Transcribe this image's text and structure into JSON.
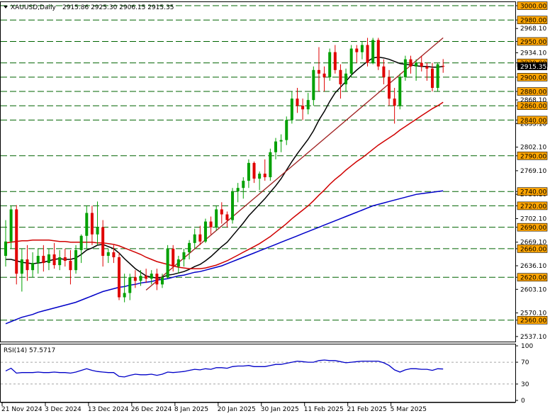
{
  "header": {
    "symbol": "XAUUSD,Daily",
    "ohlc": "2915.86 2925.30 2906.15 2915.35",
    "rsi_label": "RSI(14) 57.5717"
  },
  "colors": {
    "background": "#ffffff",
    "candle_up": "#00a000",
    "candle_down": "#e00000",
    "sma_fast": "#000000",
    "sma_mid": "#d00000",
    "sma_slow": "#0000c8",
    "trendline": "#a02020",
    "level_line": "#006400",
    "level_label_bg": "#ffa500",
    "rsi_line": "#0000c8"
  },
  "chart_data": [
    {
      "type": "candlestick",
      "title": "XAUUSD,Daily",
      "ylim": [
        2530,
        3005
      ],
      "y_ticks": [
        3000.0,
        2980.0,
        2968.1,
        2950.0,
        2934.1,
        2920.0,
        2900.0,
        2880.0,
        2868.1,
        2860.0,
        2840.0,
        2835.1,
        2802.1,
        2790.0,
        2769.1,
        2740.0,
        2736.1,
        2720.0,
        2702.1,
        2690.0,
        2669.1,
        2660.0,
        2636.1,
        2620.0,
        2603.1,
        2570.1,
        2560.0,
        2537.1
      ],
      "current_price_label": "2915.35",
      "horizontal_levels": [
        3000.0,
        2980.0,
        2950.0,
        2920.0,
        2900.0,
        2880.0,
        2860.0,
        2840.0,
        2790.0,
        2740.0,
        2720.0,
        2690.0,
        2660.0,
        2620.0,
        2560.0
      ],
      "x_labels": [
        "21 Nov 2024",
        "3 Dec 2024",
        "13 Dec 2024",
        "26 Dec 2024",
        "8 Jan 2025",
        "20 Jan 2025",
        "30 Jan 2025",
        "11 Feb 2025",
        "21 Feb 2025",
        "5 Mar 2025"
      ],
      "x_label_index": [
        0,
        8,
        16,
        24,
        32,
        40,
        48,
        56,
        64,
        72
      ],
      "candles": [
        {
          "o": 2650,
          "h": 2700,
          "l": 2635,
          "c": 2670
        },
        {
          "o": 2670,
          "h": 2720,
          "l": 2660,
          "c": 2715
        },
        {
          "o": 2715,
          "h": 2721,
          "l": 2610,
          "c": 2625
        },
        {
          "o": 2625,
          "h": 2660,
          "l": 2600,
          "c": 2645
        },
        {
          "o": 2645,
          "h": 2665,
          "l": 2615,
          "c": 2630
        },
        {
          "o": 2630,
          "h": 2655,
          "l": 2620,
          "c": 2640
        },
        {
          "o": 2640,
          "h": 2660,
          "l": 2625,
          "c": 2650
        },
        {
          "o": 2650,
          "h": 2665,
          "l": 2628,
          "c": 2640
        },
        {
          "o": 2640,
          "h": 2660,
          "l": 2630,
          "c": 2652
        },
        {
          "o": 2652,
          "h": 2668,
          "l": 2632,
          "c": 2637
        },
        {
          "o": 2637,
          "h": 2658,
          "l": 2630,
          "c": 2648
        },
        {
          "o": 2648,
          "h": 2660,
          "l": 2635,
          "c": 2643
        },
        {
          "o": 2643,
          "h": 2658,
          "l": 2610,
          "c": 2630
        },
        {
          "o": 2630,
          "h": 2665,
          "l": 2625,
          "c": 2658
        },
        {
          "o": 2658,
          "h": 2680,
          "l": 2640,
          "c": 2678
        },
        {
          "o": 2678,
          "h": 2720,
          "l": 2660,
          "c": 2710
        },
        {
          "o": 2710,
          "h": 2720,
          "l": 2665,
          "c": 2680
        },
        {
          "o": 2680,
          "h": 2726,
          "l": 2665,
          "c": 2690
        },
        {
          "o": 2690,
          "h": 2700,
          "l": 2635,
          "c": 2650
        },
        {
          "o": 2650,
          "h": 2660,
          "l": 2640,
          "c": 2655
        },
        {
          "o": 2655,
          "h": 2665,
          "l": 2640,
          "c": 2648
        },
        {
          "o": 2648,
          "h": 2655,
          "l": 2588,
          "c": 2592
        },
        {
          "o": 2592,
          "h": 2625,
          "l": 2585,
          "c": 2598
        },
        {
          "o": 2598,
          "h": 2625,
          "l": 2588,
          "c": 2620
        },
        {
          "o": 2620,
          "h": 2630,
          "l": 2605,
          "c": 2615
        },
        {
          "o": 2615,
          "h": 2630,
          "l": 2608,
          "c": 2622
        },
        {
          "o": 2622,
          "h": 2632,
          "l": 2612,
          "c": 2618
        },
        {
          "o": 2618,
          "h": 2630,
          "l": 2610,
          "c": 2625
        },
        {
          "o": 2625,
          "h": 2632,
          "l": 2602,
          "c": 2610
        },
        {
          "o": 2610,
          "h": 2625,
          "l": 2605,
          "c": 2620
        },
        {
          "o": 2620,
          "h": 2665,
          "l": 2618,
          "c": 2660
        },
        {
          "o": 2660,
          "h": 2665,
          "l": 2628,
          "c": 2635
        },
        {
          "o": 2635,
          "h": 2650,
          "l": 2625,
          "c": 2645
        },
        {
          "o": 2645,
          "h": 2660,
          "l": 2635,
          "c": 2655
        },
        {
          "o": 2655,
          "h": 2672,
          "l": 2645,
          "c": 2668
        },
        {
          "o": 2668,
          "h": 2688,
          "l": 2660,
          "c": 2680
        },
        {
          "o": 2680,
          "h": 2692,
          "l": 2665,
          "c": 2670
        },
        {
          "o": 2670,
          "h": 2702,
          "l": 2668,
          "c": 2698
        },
        {
          "o": 2698,
          "h": 2705,
          "l": 2680,
          "c": 2690
        },
        {
          "o": 2690,
          "h": 2720,
          "l": 2685,
          "c": 2715
        },
        {
          "o": 2715,
          "h": 2725,
          "l": 2695,
          "c": 2708
        },
        {
          "o": 2708,
          "h": 2712,
          "l": 2690,
          "c": 2700
        },
        {
          "o": 2700,
          "h": 2745,
          "l": 2695,
          "c": 2740
        },
        {
          "o": 2740,
          "h": 2752,
          "l": 2725,
          "c": 2745
        },
        {
          "o": 2745,
          "h": 2760,
          "l": 2730,
          "c": 2755
        },
        {
          "o": 2755,
          "h": 2785,
          "l": 2745,
          "c": 2780
        },
        {
          "o": 2780,
          "h": 2782,
          "l": 2752,
          "c": 2758
        },
        {
          "o": 2758,
          "h": 2768,
          "l": 2742,
          "c": 2765
        },
        {
          "o": 2765,
          "h": 2785,
          "l": 2755,
          "c": 2760
        },
        {
          "o": 2760,
          "h": 2800,
          "l": 2755,
          "c": 2795
        },
        {
          "o": 2795,
          "h": 2815,
          "l": 2785,
          "c": 2810
        },
        {
          "o": 2810,
          "h": 2820,
          "l": 2795,
          "c": 2812
        },
        {
          "o": 2812,
          "h": 2845,
          "l": 2805,
          "c": 2840
        },
        {
          "o": 2840,
          "h": 2880,
          "l": 2835,
          "c": 2870
        },
        {
          "o": 2870,
          "h": 2885,
          "l": 2850,
          "c": 2860
        },
        {
          "o": 2860,
          "h": 2870,
          "l": 2840,
          "c": 2855
        },
        {
          "o": 2855,
          "h": 2878,
          "l": 2848,
          "c": 2868
        },
        {
          "o": 2868,
          "h": 2915,
          "l": 2860,
          "c": 2910
        },
        {
          "o": 2910,
          "h": 2942,
          "l": 2880,
          "c": 2905
        },
        {
          "o": 2905,
          "h": 2915,
          "l": 2880,
          "c": 2900
        },
        {
          "o": 2900,
          "h": 2940,
          "l": 2895,
          "c": 2935
        },
        {
          "o": 2935,
          "h": 2945,
          "l": 2905,
          "c": 2910
        },
        {
          "o": 2910,
          "h": 2918,
          "l": 2870,
          "c": 2890
        },
        {
          "o": 2890,
          "h": 2912,
          "l": 2880,
          "c": 2905
        },
        {
          "o": 2905,
          "h": 2945,
          "l": 2900,
          "c": 2940
        },
        {
          "o": 2940,
          "h": 2945,
          "l": 2920,
          "c": 2935
        },
        {
          "o": 2935,
          "h": 2950,
          "l": 2925,
          "c": 2945
        },
        {
          "o": 2945,
          "h": 2955,
          "l": 2915,
          "c": 2920
        },
        {
          "o": 2920,
          "h": 2955,
          "l": 2918,
          "c": 2952
        },
        {
          "o": 2952,
          "h": 2955,
          "l": 2910,
          "c": 2915
        },
        {
          "o": 2915,
          "h": 2925,
          "l": 2890,
          "c": 2900
        },
        {
          "o": 2900,
          "h": 2910,
          "l": 2860,
          "c": 2870
        },
        {
          "o": 2870,
          "h": 2885,
          "l": 2835,
          "c": 2860
        },
        {
          "o": 2860,
          "h": 2905,
          "l": 2855,
          "c": 2900
        },
        {
          "o": 2900,
          "h": 2930,
          "l": 2895,
          "c": 2925
        },
        {
          "o": 2925,
          "h": 2930,
          "l": 2905,
          "c": 2915
        },
        {
          "o": 2915,
          "h": 2925,
          "l": 2895,
          "c": 2920
        },
        {
          "o": 2920,
          "h": 2930,
          "l": 2908,
          "c": 2915
        },
        {
          "o": 2915,
          "h": 2920,
          "l": 2895,
          "c": 2912
        },
        {
          "o": 2912,
          "h": 2920,
          "l": 2880,
          "c": 2885
        },
        {
          "o": 2885,
          "h": 2920,
          "l": 2880,
          "c": 2918
        },
        {
          "o": 2915.86,
          "h": 2925.3,
          "l": 2906.15,
          "c": 2915.35
        }
      ],
      "series": [
        {
          "name": "",
          "kind": "sma_fast",
          "values": [
            2645,
            2645,
            2643,
            2641,
            2640,
            2639,
            2640,
            2641,
            2643,
            2645,
            2646,
            2645,
            2645,
            2647,
            2652,
            2658,
            2661,
            2665,
            2666,
            2663,
            2660,
            2654,
            2646,
            2639,
            2632,
            2627,
            2622,
            2620,
            2619,
            2620,
            2623,
            2624,
            2626,
            2628,
            2631,
            2635,
            2638,
            2643,
            2649,
            2656,
            2663,
            2669,
            2678,
            2687,
            2696,
            2706,
            2714,
            2722,
            2730,
            2739,
            2748,
            2758,
            2770,
            2782,
            2793,
            2803,
            2813,
            2825,
            2840,
            2852,
            2866,
            2878,
            2886,
            2894,
            2903,
            2910,
            2916,
            2922,
            2927,
            2928,
            2927,
            2925,
            2922,
            2919,
            2918,
            2917,
            2916,
            2915,
            2915,
            2914,
            2914,
            2915
          ]
        },
        {
          "name": "",
          "kind": "sma_mid",
          "values": [
            2668,
            2669,
            2670,
            2671,
            2671,
            2672,
            2672,
            2672,
            2672,
            2671,
            2670,
            2670,
            2669,
            2669,
            2669,
            2669,
            2669,
            2668,
            2668,
            2667,
            2666,
            2664,
            2661,
            2658,
            2655,
            2652,
            2648,
            2645,
            2642,
            2640,
            2638,
            2636,
            2634,
            2633,
            2632,
            2632,
            2632,
            2633,
            2635,
            2637,
            2640,
            2643,
            2647,
            2651,
            2655,
            2659,
            2663,
            2667,
            2672,
            2677,
            2683,
            2689,
            2695,
            2702,
            2708,
            2714,
            2720,
            2727,
            2735,
            2742,
            2750,
            2757,
            2763,
            2770,
            2776,
            2782,
            2787,
            2793,
            2799,
            2805,
            2810,
            2815,
            2820,
            2826,
            2831,
            2836,
            2841,
            2846,
            2851,
            2856,
            2860,
            2865
          ]
        },
        {
          "name": "",
          "kind": "sma_slow",
          "values": [
            2555,
            2558,
            2561,
            2564,
            2566,
            2568,
            2571,
            2573,
            2575,
            2577,
            2579,
            2581,
            2583,
            2585,
            2588,
            2591,
            2594,
            2597,
            2600,
            2602,
            2604,
            2606,
            2607,
            2609,
            2610,
            2612,
            2613,
            2614,
            2616,
            2617,
            2618,
            2620,
            2622,
            2623,
            2625,
            2627,
            2628,
            2630,
            2632,
            2634,
            2636,
            2639,
            2642,
            2645,
            2648,
            2651,
            2654,
            2657,
            2660,
            2663,
            2666,
            2669,
            2672,
            2675,
            2678,
            2681,
            2684,
            2687,
            2690,
            2693,
            2696,
            2699,
            2702,
            2705,
            2708,
            2711,
            2714,
            2717,
            2720,
            2722,
            2724,
            2726,
            2728,
            2730,
            2732,
            2734,
            2736,
            2737,
            2738,
            2739,
            2740,
            2741
          ]
        },
        {
          "name": "",
          "kind": "trendline",
          "from": {
            "i": 26,
            "v": 2602
          },
          "to": {
            "i": 81,
            "v": 2955
          }
        }
      ]
    },
    {
      "type": "line",
      "title": "RSI(14) 57.5717",
      "ylim": [
        0,
        100
      ],
      "y_ticks": [
        100,
        70,
        30,
        0
      ],
      "levels": [
        70,
        30
      ],
      "series": [
        {
          "name": "",
          "values": [
            54,
            59,
            50,
            51,
            51,
            51,
            52,
            51,
            51,
            52,
            51,
            51,
            50,
            52,
            55,
            58,
            55,
            53,
            52,
            51,
            51,
            44,
            43,
            46,
            48,
            47,
            47,
            48,
            46,
            48,
            52,
            51,
            52,
            53,
            55,
            57,
            56,
            58,
            57,
            60,
            60,
            59,
            62,
            63,
            63,
            64,
            62,
            62,
            62,
            64,
            66,
            66,
            68,
            70,
            72,
            71,
            70,
            70,
            73,
            74,
            73,
            73,
            71,
            69,
            70,
            71,
            72,
            72,
            72,
            72,
            69,
            64,
            56,
            52,
            56,
            58,
            58,
            57,
            57,
            55,
            58,
            57.57
          ]
        }
      ]
    }
  ]
}
